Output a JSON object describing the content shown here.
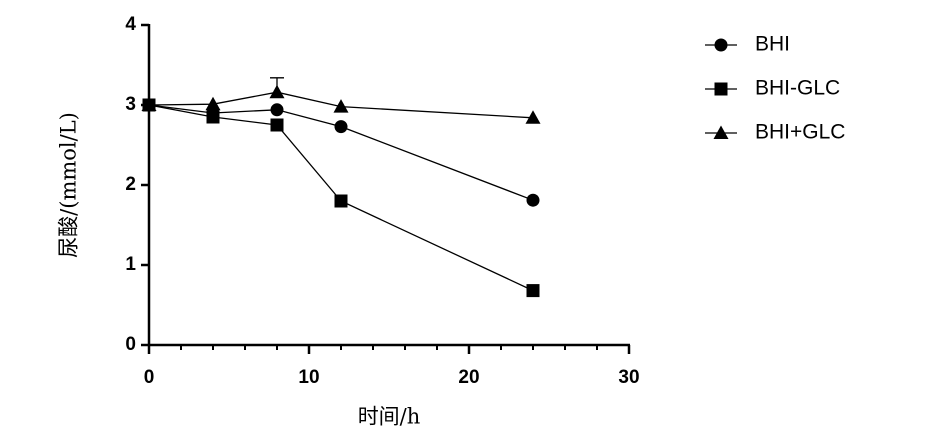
{
  "chart_data": {
    "type": "line",
    "x_label": "时间/h",
    "y_label": "尿酸/(mmol/L)",
    "xlim": [
      0,
      30
    ],
    "xticks": [
      0,
      10,
      20,
      30
    ],
    "xminorticks": [
      2,
      4,
      6,
      8,
      12,
      14,
      16,
      18,
      22,
      24,
      26,
      28
    ],
    "ylim": [
      0,
      4
    ],
    "yticks": [
      0,
      1,
      2,
      3,
      4
    ],
    "legend": "right",
    "series": [
      {
        "name": "BHI",
        "color": "#000000",
        "marker": "circle",
        "x": [
          0,
          4,
          8,
          12,
          24
        ],
        "values": [
          3.0,
          2.9,
          2.94,
          2.73,
          1.81
        ]
      },
      {
        "name": "BHI-GLC",
        "color": "#000000",
        "marker": "square",
        "x": [
          0,
          4,
          8,
          12,
          24
        ],
        "values": [
          3.0,
          2.85,
          2.75,
          1.8,
          0.68
        ]
      },
      {
        "name": "BHI+GLC",
        "color": "#000000",
        "marker": "triangle",
        "x": [
          0,
          4,
          8,
          12,
          24
        ],
        "values": [
          3.0,
          3.01,
          3.16,
          2.98,
          2.84
        ],
        "errors": [
          null,
          null,
          0.18,
          null,
          null
        ]
      }
    ]
  }
}
